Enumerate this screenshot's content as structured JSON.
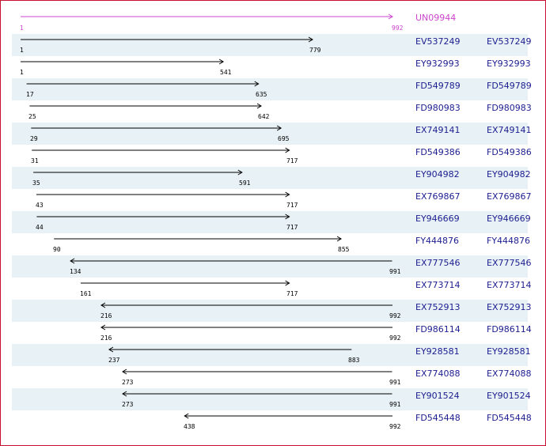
{
  "reference": {
    "id": "UN09944",
    "start": 1,
    "end": 992,
    "color": "#cc44cc"
  },
  "alignments": [
    {
      "id": "EV537249",
      "dup": "EV537249",
      "start": 1,
      "end": 779,
      "dir": "forward"
    },
    {
      "id": "EY932993",
      "dup": "EY932993",
      "start": 1,
      "end": 541,
      "dir": "forward"
    },
    {
      "id": "FD549789",
      "dup": "FD549789",
      "start": 17,
      "end": 635,
      "dir": "forward"
    },
    {
      "id": "FD980983",
      "dup": "FD980983",
      "start": 25,
      "end": 642,
      "dir": "forward"
    },
    {
      "id": "EX749141",
      "dup": "EX749141",
      "start": 29,
      "end": 695,
      "dir": "forward"
    },
    {
      "id": "FD549386",
      "dup": "FD549386",
      "start": 31,
      "end": 717,
      "dir": "forward"
    },
    {
      "id": "EY904982",
      "dup": "EY904982",
      "start": 35,
      "end": 591,
      "dir": "forward"
    },
    {
      "id": "EX769867",
      "dup": "EX769867",
      "start": 43,
      "end": 717,
      "dir": "forward"
    },
    {
      "id": "EY946669",
      "dup": "EY946669",
      "start": 44,
      "end": 717,
      "dir": "forward"
    },
    {
      "id": "FY444876",
      "dup": "FY444876",
      "start": 90,
      "end": 855,
      "dir": "forward"
    },
    {
      "id": "EX777546",
      "dup": "EX777546",
      "start": 134,
      "end": 991,
      "dir": "reverse"
    },
    {
      "id": "EX773714",
      "dup": "EX773714",
      "start": 161,
      "end": 717,
      "dir": "forward"
    },
    {
      "id": "EX752913",
      "dup": "EX752913",
      "start": 216,
      "end": 992,
      "dir": "reverse"
    },
    {
      "id": "FD986114",
      "dup": "FD986114",
      "start": 216,
      "end": 992,
      "dir": "reverse"
    },
    {
      "id": "EY928581",
      "dup": "EY928581",
      "start": 237,
      "end": 883,
      "dir": "reverse"
    },
    {
      "id": "EX774088",
      "dup": "EX774088",
      "start": 273,
      "end": 991,
      "dir": "reverse"
    },
    {
      "id": "EY901524",
      "dup": "EY901524",
      "start": 273,
      "end": 991,
      "dir": "reverse"
    },
    {
      "id": "FD545448",
      "dup": "FD545448",
      "start": 438,
      "end": 992,
      "dir": "reverse"
    }
  ],
  "colors": {
    "row_alt": "#e7f1f6",
    "link": "#1d1d8f",
    "arrow": "#000000",
    "border": "#c8102e"
  }
}
